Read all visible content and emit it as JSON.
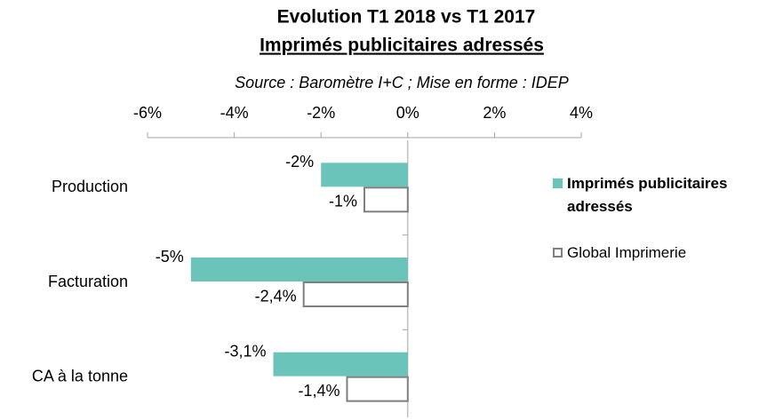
{
  "chart_data": {
    "type": "bar",
    "orientation": "horizontal",
    "title": "Evolution T1 2018 vs T1 2017",
    "subtitle": "Imprimés publicitaires adressés",
    "source": "Source : Baromètre I+C ; Mise en forme : IDEP",
    "categories": [
      "Production",
      "Facturation",
      "CA à la tonne"
    ],
    "series": [
      {
        "name": "Imprimés publicitaires adressés",
        "color": "#6bc4ba",
        "values": [
          -2,
          -5,
          -3.1
        ],
        "value_labels": [
          "-2%",
          "-5%",
          "-3,1%"
        ]
      },
      {
        "name": "Global Imprimerie",
        "color": "#ffffff",
        "values": [
          -1,
          -2.4,
          -1.4
        ],
        "value_labels": [
          "-1%",
          "-2,4%",
          "-1,4%"
        ]
      }
    ],
    "xlim": [
      -6,
      4
    ],
    "xticks": [
      {
        "value": -6,
        "label": "-6%"
      },
      {
        "value": -4,
        "label": "-4%"
      },
      {
        "value": -2,
        "label": "-2%"
      },
      {
        "value": 0,
        "label": "0%"
      },
      {
        "value": 2,
        "label": "2%"
      },
      {
        "value": 4,
        "label": "4%"
      }
    ],
    "legend": "right"
  }
}
